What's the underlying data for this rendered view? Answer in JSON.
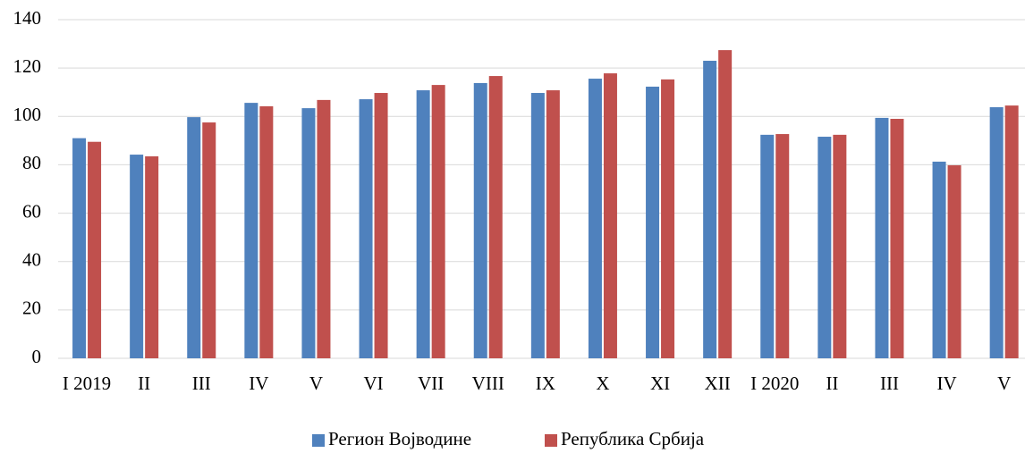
{
  "chart_data": {
    "type": "bar",
    "categories": [
      "I 2019",
      "II",
      "III",
      "IV",
      "V",
      "VI",
      "VII",
      "VIII",
      "IX",
      "X",
      "XI",
      "XII",
      "I 2020",
      "II",
      "III",
      "IV",
      "V"
    ],
    "series": [
      {
        "name": "Регион Војводине",
        "color": "#4f81bd",
        "values": [
          91,
          84.2,
          99.7,
          105.6,
          103.4,
          107.1,
          110.8,
          113.8,
          109.7,
          115.6,
          112.3,
          123,
          92.4,
          91.6,
          99.4,
          81.3,
          103.8
        ]
      },
      {
        "name": "Република Србија",
        "color": "#c0504d",
        "values": [
          89.5,
          83.5,
          97.5,
          104.2,
          106.8,
          109.7,
          113,
          116.7,
          110.8,
          117.8,
          115.3,
          127.4,
          92.7,
          92.4,
          99,
          79.8,
          104.5
        ]
      }
    ],
    "ylim": [
      0,
      140
    ],
    "yticks": [
      0,
      20,
      40,
      60,
      80,
      100,
      120,
      140
    ],
    "grid": true,
    "legend": "bottom"
  }
}
